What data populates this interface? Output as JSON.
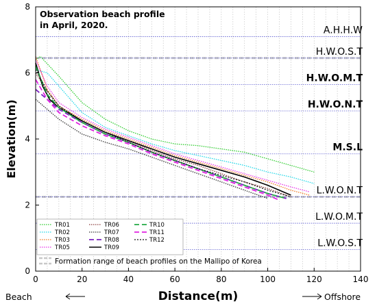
{
  "chart_data": {
    "type": "line",
    "title_lines": [
      "Observation beach profile",
      "in April, 2020."
    ],
    "xlabel": "Distance(m)",
    "ylabel": "Elevation(m)",
    "xlim": [
      0,
      140
    ],
    "ylim": [
      0,
      8
    ],
    "xticks": [
      0,
      20,
      40,
      60,
      80,
      100,
      120,
      140
    ],
    "yticks": [
      0,
      2,
      4,
      6,
      8
    ],
    "x_left_note": "Beach",
    "x_right_note": "Offshore",
    "levels": [
      {
        "label": "A.H.H.W",
        "y": 7.1,
        "bold": false
      },
      {
        "label": "H.W.O.S.T",
        "y": 6.45,
        "bold": false,
        "band_edge": true
      },
      {
        "label": "H.W.O.M.T",
        "y": 5.65,
        "bold": true
      },
      {
        "label": "H.W.O.N.T",
        "y": 4.85,
        "bold": true
      },
      {
        "label": "M.S.L",
        "y": 3.55,
        "bold": true
      },
      {
        "label": "L.W.O.N.T",
        "y": 2.25,
        "bold": false,
        "band_edge": true
      },
      {
        "label": "L.W.O.M.T",
        "y": 1.45,
        "bold": false
      },
      {
        "label": "L.W.O.S.T",
        "y": 0.65,
        "bold": false
      }
    ],
    "band_note": "Formation range of beach profiles on the Mallipo of Korea",
    "series": [
      {
        "name": "TR01",
        "color": "#2ecc2e",
        "dash": "1.5,1.5",
        "width": 1.3,
        "x": [
          0,
          2,
          6,
          10,
          15,
          20,
          30,
          40,
          50,
          60,
          70,
          80,
          90,
          100,
          110,
          120
        ],
        "y": [
          6.4,
          6.5,
          6.2,
          5.9,
          5.5,
          5.1,
          4.6,
          4.25,
          4.0,
          3.85,
          3.8,
          3.7,
          3.6,
          3.4,
          3.2,
          3.0
        ]
      },
      {
        "name": "TR02",
        "color": "#22d8e8",
        "dash": "1.5,1.5",
        "width": 1.3,
        "x": [
          0,
          5,
          10,
          15,
          20,
          30,
          40,
          50,
          60,
          70,
          80,
          90,
          100,
          110,
          120
        ],
        "y": [
          6.1,
          6.0,
          5.6,
          5.2,
          4.8,
          4.35,
          4.1,
          3.85,
          3.65,
          3.5,
          3.35,
          3.2,
          3.0,
          2.85,
          2.65
        ]
      },
      {
        "name": "TR03",
        "color": "#f07820",
        "dash": "1.5,1.5",
        "width": 1.3,
        "x": [
          0,
          5,
          10,
          20,
          30,
          40,
          50,
          60,
          70,
          80,
          90,
          100,
          110,
          118
        ],
        "y": [
          6.5,
          5.5,
          5.0,
          4.6,
          4.25,
          4.0,
          3.75,
          3.5,
          3.3,
          3.1,
          2.9,
          2.7,
          2.45,
          2.3
        ]
      },
      {
        "name": "TR05",
        "color": "#e838e8",
        "dash": "1.5,1.5",
        "width": 1.3,
        "x": [
          0,
          5,
          10,
          20,
          30,
          40,
          50,
          60,
          70,
          80,
          90,
          100,
          110,
          118
        ],
        "y": [
          6.4,
          5.6,
          5.1,
          4.65,
          4.3,
          4.05,
          3.8,
          3.55,
          3.35,
          3.15,
          2.95,
          2.75,
          2.55,
          2.4
        ]
      },
      {
        "name": "TR06",
        "color": "#8a3a3a",
        "dash": "1.5,1.5",
        "width": 1.3,
        "x": [
          0,
          5,
          10,
          20,
          30,
          40,
          50,
          60,
          70,
          80,
          90,
          100,
          110
        ],
        "y": [
          6.0,
          5.45,
          5.0,
          4.55,
          4.2,
          3.95,
          3.65,
          3.4,
          3.2,
          2.95,
          2.7,
          2.5,
          2.25
        ]
      },
      {
        "name": "TR07",
        "color": "#333333",
        "dash": "1.5,1.5",
        "width": 1.3,
        "x": [
          0,
          5,
          10,
          20,
          30,
          40,
          50,
          60,
          70,
          80,
          90,
          100
        ],
        "y": [
          5.2,
          4.9,
          4.6,
          4.15,
          3.9,
          3.7,
          3.45,
          3.2,
          2.95,
          2.7,
          2.45,
          2.2
        ]
      },
      {
        "name": "TR08",
        "color": "#7a1fc0",
        "dash": "7,4",
        "width": 1.8,
        "x": [
          0,
          5,
          10,
          20,
          30,
          40,
          50,
          60,
          70,
          80,
          90,
          100,
          108
        ],
        "y": [
          5.5,
          5.2,
          4.9,
          4.5,
          4.15,
          3.9,
          3.6,
          3.35,
          3.1,
          2.85,
          2.6,
          2.35,
          2.2
        ]
      },
      {
        "name": "TR09",
        "color": "#000000",
        "dash": "",
        "width": 1.6,
        "x": [
          0,
          3,
          6,
          10,
          20,
          30,
          40,
          50,
          60,
          70,
          80,
          90,
          100,
          110
        ],
        "y": [
          6.3,
          5.6,
          5.2,
          4.95,
          4.55,
          4.2,
          3.95,
          3.7,
          3.45,
          3.25,
          3.05,
          2.85,
          2.6,
          2.3
        ]
      },
      {
        "name": "TR10",
        "color": "#22aa44",
        "dash": "7,4",
        "width": 1.8,
        "x": [
          0,
          5,
          10,
          20,
          30,
          40,
          50,
          60,
          70,
          80,
          90,
          100,
          108
        ],
        "y": [
          6.2,
          5.35,
          4.95,
          4.5,
          4.15,
          3.9,
          3.6,
          3.35,
          3.1,
          2.85,
          2.6,
          2.35,
          2.2
        ]
      },
      {
        "name": "TR11",
        "color": "#e020e0",
        "dash": "7,4",
        "width": 1.8,
        "x": [
          0,
          5,
          10,
          20,
          30,
          40,
          50,
          60,
          70,
          80,
          90,
          100,
          105
        ],
        "y": [
          5.8,
          5.2,
          4.8,
          4.4,
          4.1,
          3.85,
          3.55,
          3.3,
          3.05,
          2.8,
          2.55,
          2.3,
          2.15
        ]
      },
      {
        "name": "TR12",
        "color": "#111111",
        "dash": "2,2",
        "width": 1.3,
        "x": [
          0,
          5,
          10,
          20,
          30,
          40,
          50,
          60,
          70,
          80,
          90,
          100,
          110
        ],
        "y": [
          6.1,
          5.45,
          5.0,
          4.55,
          4.2,
          3.9,
          3.6,
          3.35,
          3.1,
          2.9,
          2.7,
          2.45,
          2.25
        ]
      }
    ]
  }
}
